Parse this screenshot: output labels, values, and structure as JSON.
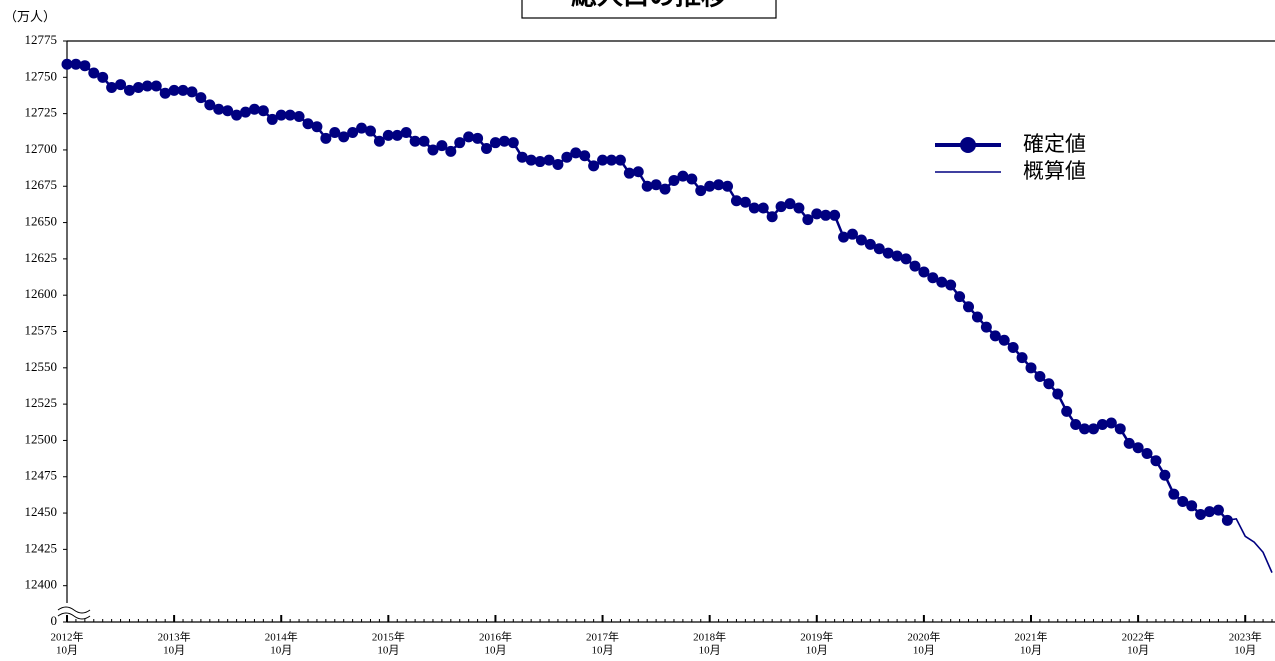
{
  "chart_data": {
    "type": "line",
    "title": "総人口の推移",
    "y_unit": "（万人）",
    "x": [
      "2012-10",
      "2012-11",
      "2012-12",
      "2013-01",
      "2013-02",
      "2013-03",
      "2013-04",
      "2013-05",
      "2013-06",
      "2013-07",
      "2013-08",
      "2013-09",
      "2013-10",
      "2013-11",
      "2013-12",
      "2014-01",
      "2014-02",
      "2014-03",
      "2014-04",
      "2014-05",
      "2014-06",
      "2014-07",
      "2014-08",
      "2014-09",
      "2014-10",
      "2014-11",
      "2014-12",
      "2015-01",
      "2015-02",
      "2015-03",
      "2015-04",
      "2015-05",
      "2015-06",
      "2015-07",
      "2015-08",
      "2015-09",
      "2015-10",
      "2015-11",
      "2015-12",
      "2016-01",
      "2016-02",
      "2016-03",
      "2016-04",
      "2016-05",
      "2016-06",
      "2016-07",
      "2016-08",
      "2016-09",
      "2016-10",
      "2016-11",
      "2016-12",
      "2017-01",
      "2017-02",
      "2017-03",
      "2017-04",
      "2017-05",
      "2017-06",
      "2017-07",
      "2017-08",
      "2017-09",
      "2017-10",
      "2017-11",
      "2017-12",
      "2018-01",
      "2018-02",
      "2018-03",
      "2018-04",
      "2018-05",
      "2018-06",
      "2018-07",
      "2018-08",
      "2018-09",
      "2018-10",
      "2018-11",
      "2018-12",
      "2019-01",
      "2019-02",
      "2019-03",
      "2019-04",
      "2019-05",
      "2019-06",
      "2019-07",
      "2019-08",
      "2019-09",
      "2019-10",
      "2019-11",
      "2019-12",
      "2020-01",
      "2020-02",
      "2020-03",
      "2020-04",
      "2020-05",
      "2020-06",
      "2020-07",
      "2020-08",
      "2020-09",
      "2020-10",
      "2020-11",
      "2020-12",
      "2021-01",
      "2021-02",
      "2021-03",
      "2021-04",
      "2021-05",
      "2021-06",
      "2021-07",
      "2021-08",
      "2021-09",
      "2021-10",
      "2021-11",
      "2021-12",
      "2022-01",
      "2022-02",
      "2022-03",
      "2022-04",
      "2022-05",
      "2022-06",
      "2022-07",
      "2022-08",
      "2022-09",
      "2022-10",
      "2022-11",
      "2022-12",
      "2023-01",
      "2023-02",
      "2023-03",
      "2023-04",
      "2023-05",
      "2023-06",
      "2023-07",
      "2023-08",
      "2023-09",
      "2023-10",
      "2023-11",
      "2023-12",
      "2024-01"
    ],
    "series": [
      {
        "name": "確定値",
        "color": "#000080",
        "markers": true,
        "values": [
          12759,
          12759,
          12758,
          12753,
          12750,
          12743,
          12745,
          12741,
          12743,
          12744,
          12744,
          12739,
          12741,
          12741,
          12740,
          12736,
          12731,
          12728,
          12727,
          12724,
          12726,
          12728,
          12727,
          12721,
          12724,
          12724,
          12723,
          12718,
          12716,
          12708,
          12712,
          12709,
          12712,
          12715,
          12713,
          12706,
          12710,
          12710,
          12712,
          12706,
          12706,
          12700,
          12703,
          12699,
          12705,
          12709,
          12708,
          12701,
          12705,
          12706,
          12705,
          12695,
          12693,
          12692,
          12693,
          12690,
          12695,
          12698,
          12696,
          12689,
          12693,
          12693,
          12693,
          12684,
          12685,
          12675,
          12676,
          12673,
          12679,
          12682,
          12680,
          12672,
          12675,
          12676,
          12675,
          12665,
          12664,
          12660,
          12660,
          12654,
          12661,
          12663,
          12660,
          12652,
          12656,
          12655,
          12655,
          12640,
          12642,
          12638,
          12635,
          12632,
          12629,
          12627,
          12625,
          12620,
          12616,
          12612,
          12609,
          12607,
          12599,
          12592,
          12585,
          12578,
          12572,
          12569,
          12564,
          12557,
          12550,
          12544,
          12539,
          12532,
          12520,
          12511,
          12508,
          12508,
          12511,
          12512,
          12508,
          12498,
          12495,
          12491,
          12486,
          12476,
          12463,
          12458,
          12455,
          12449,
          12451,
          12452,
          12445,
          null,
          null,
          null,
          null,
          null
        ]
      },
      {
        "name": "概算値",
        "color": "#000080",
        "markers": false,
        "values": [
          null,
          null,
          null,
          null,
          null,
          null,
          null,
          null,
          null,
          null,
          null,
          null,
          null,
          null,
          null,
          null,
          null,
          null,
          null,
          null,
          null,
          null,
          null,
          null,
          null,
          null,
          null,
          null,
          null,
          null,
          null,
          null,
          null,
          null,
          null,
          null,
          null,
          null,
          null,
          null,
          null,
          null,
          null,
          null,
          null,
          null,
          null,
          null,
          null,
          null,
          null,
          null,
          null,
          null,
          null,
          null,
          null,
          null,
          null,
          null,
          null,
          null,
          null,
          null,
          null,
          null,
          null,
          null,
          null,
          null,
          null,
          null,
          null,
          null,
          null,
          null,
          null,
          null,
          null,
          null,
          null,
          null,
          null,
          null,
          null,
          null,
          null,
          null,
          null,
          null,
          null,
          null,
          null,
          null,
          null,
          null,
          null,
          null,
          null,
          null,
          null,
          null,
          null,
          null,
          null,
          null,
          null,
          null,
          null,
          null,
          null,
          null,
          null,
          null,
          null,
          null,
          null,
          null,
          null,
          null,
          null,
          null,
          null,
          null,
          null,
          null,
          null,
          null,
          null,
          null,
          12445,
          12446,
          12434,
          12430,
          12423,
          12409
        ]
      }
    ],
    "ylim": [
      0,
      12775
    ],
    "axis_break": [
      0,
      12375
    ],
    "yticks": [
      0,
      12400,
      12425,
      12450,
      12475,
      12500,
      12525,
      12550,
      12575,
      12600,
      12625,
      12650,
      12675,
      12700,
      12725,
      12750,
      12775
    ],
    "xticks": [
      {
        "value": "2012-10",
        "label": [
          "2012年",
          "10月"
        ]
      },
      {
        "value": "2013-10",
        "label": [
          "2013年",
          "10月"
        ]
      },
      {
        "value": "2014-10",
        "label": [
          "2014年",
          "10月"
        ]
      },
      {
        "value": "2015-10",
        "label": [
          "2015年",
          "10月"
        ]
      },
      {
        "value": "2016-10",
        "label": [
          "2016年",
          "10月"
        ]
      },
      {
        "value": "2017-10",
        "label": [
          "2017年",
          "10月"
        ]
      },
      {
        "value": "2018-10",
        "label": [
          "2018年",
          "10月"
        ]
      },
      {
        "value": "2019-10",
        "label": [
          "2019年",
          "10月"
        ]
      },
      {
        "value": "2020-10",
        "label": [
          "2020年",
          "10月"
        ]
      },
      {
        "value": "2021-10",
        "label": [
          "2021年",
          "10月"
        ]
      },
      {
        "value": "2022-10",
        "label": [
          "2022年",
          "10月"
        ]
      },
      {
        "value": "2023-10",
        "label": [
          "2023年",
          "10月"
        ]
      }
    ],
    "grid": false,
    "legend": "right"
  }
}
